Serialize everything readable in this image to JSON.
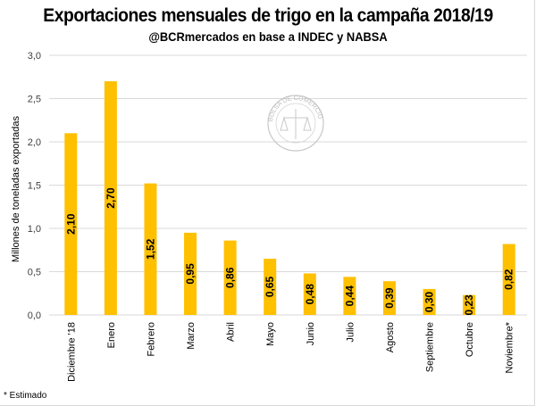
{
  "chart_data": {
    "type": "bar",
    "title": "Exportaciones mensuales de trigo en la campaña 2018/19",
    "subtitle": "@BCRmercados en base a INDEC y NABSA",
    "xlabel": "",
    "ylabel": "Millones de toneladas exportadas",
    "ylim": [
      0,
      3.0
    ],
    "yticks": [
      "0,0",
      "0,5",
      "1,0",
      "1,5",
      "2,0",
      "2,5",
      "3,0"
    ],
    "ytick_values": [
      0,
      0.5,
      1.0,
      1.5,
      2.0,
      2.5,
      3.0
    ],
    "grid": true,
    "categories": [
      "Diciembre '18",
      "Enero",
      "Febrero",
      "Marzo",
      "Abril",
      "Mayo",
      "Junio",
      "Julio",
      "Agosto",
      "Septiembre",
      "Octubre",
      "Noviembre*"
    ],
    "values": [
      2.1,
      2.7,
      1.52,
      0.95,
      0.86,
      0.65,
      0.48,
      0.44,
      0.39,
      0.3,
      0.23,
      0.82
    ],
    "data_labels": [
      "2,10",
      "2,70",
      "1,52",
      "0,95",
      "0,86",
      "0,65",
      "0,48",
      "0,44",
      "0,39",
      "0,30",
      "0,23",
      "0,82"
    ],
    "bar_color": "#FFC000",
    "footnote": "* Estimado",
    "watermark": "BOLSA DE COMERCIO DE ROSARIO"
  }
}
